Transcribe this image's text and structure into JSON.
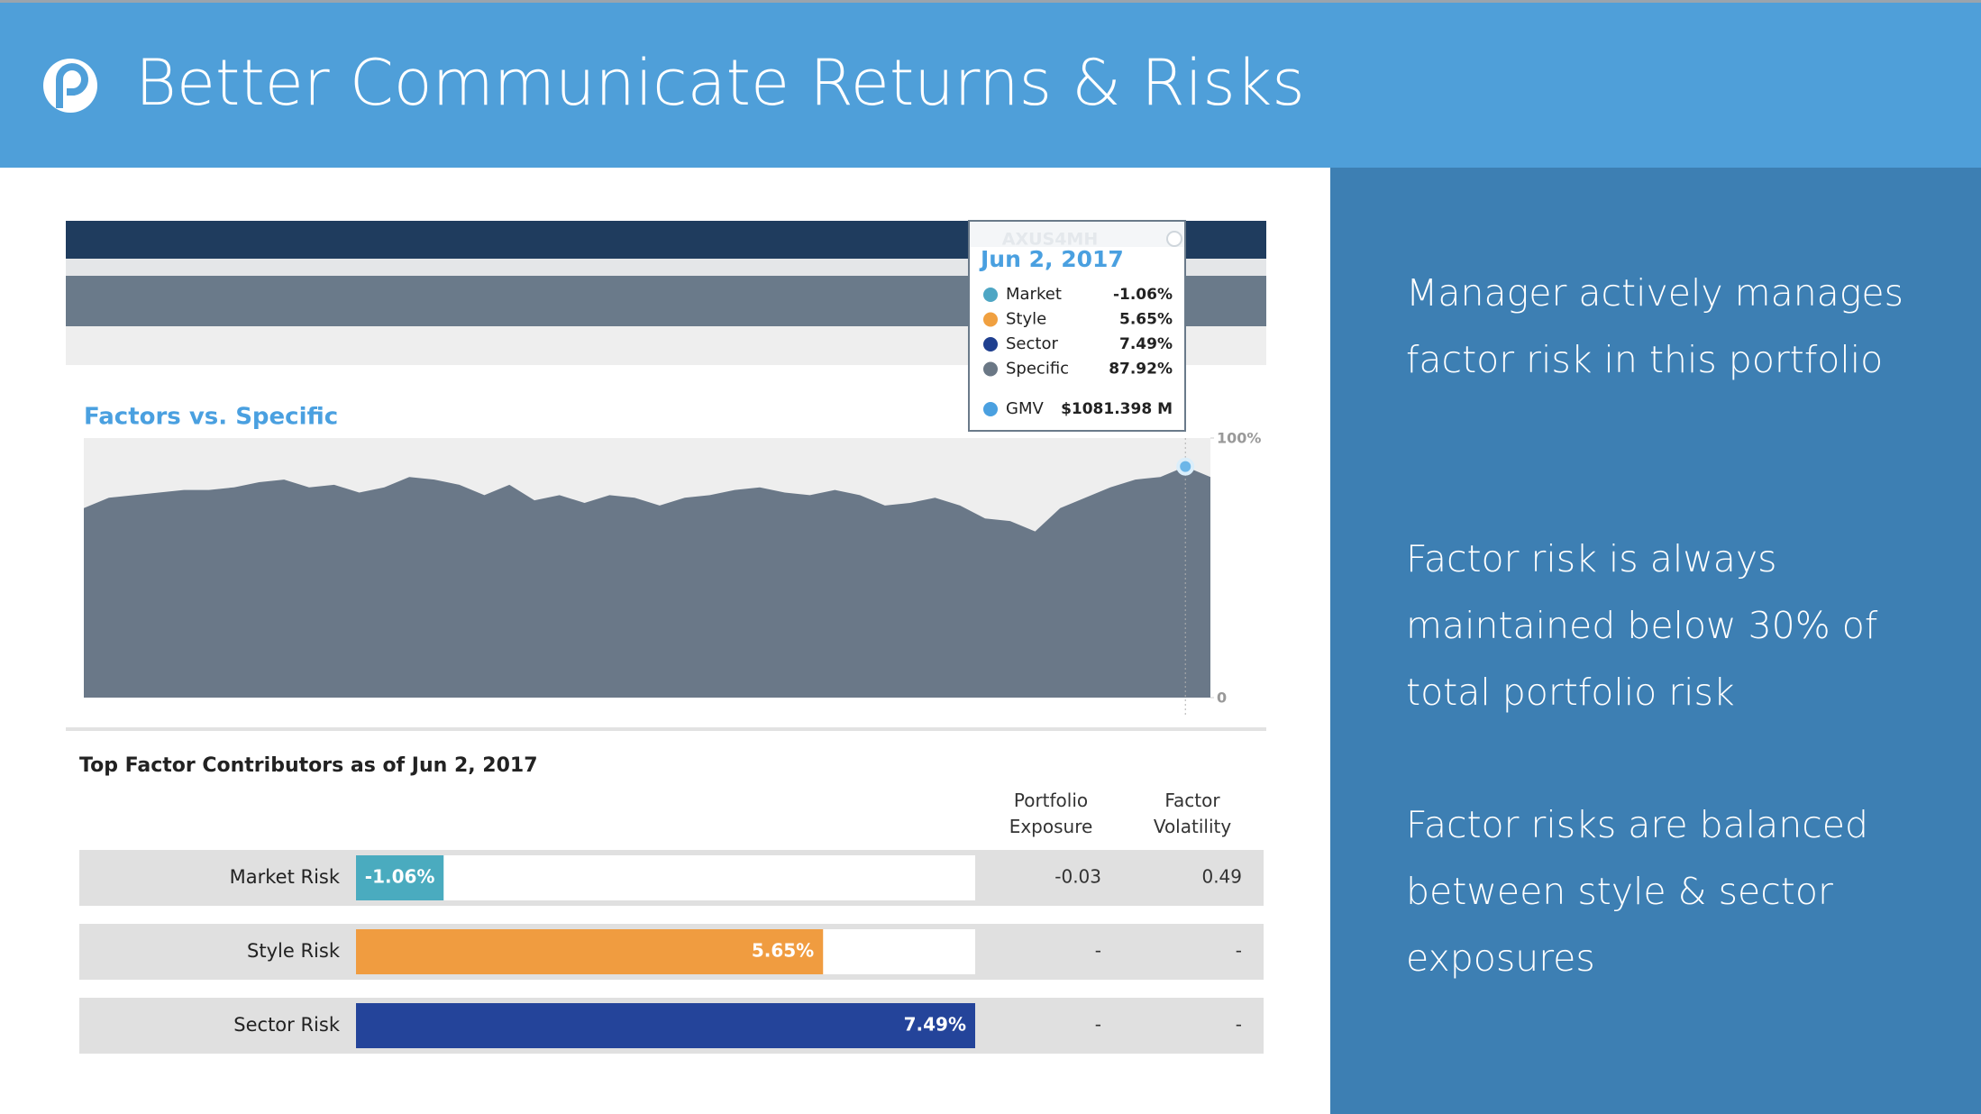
{
  "header": {
    "title": "Better Communicate Returns & Risks"
  },
  "tooltip": {
    "id": "AXUS4MH",
    "date": "Jun 2, 2017",
    "items": [
      {
        "name": "Market",
        "value": "-1.06%",
        "color": "#4ea6c4"
      },
      {
        "name": "Style",
        "value": "5.65%",
        "color": "#f0a040"
      },
      {
        "name": "Sector",
        "value": "7.49%",
        "color": "#1f3f8f"
      },
      {
        "name": "Specific",
        "value": "87.92%",
        "color": "#6a7785"
      }
    ],
    "gmv": {
      "name": "GMV",
      "value": "$1081.398 M",
      "color": "#4aa0e0"
    }
  },
  "chart_data": [
    {
      "type": "area",
      "title": "Factors vs. Specific",
      "color": "#6a7888",
      "values": [
        73,
        77,
        78,
        79,
        80,
        80,
        81,
        83,
        84,
        81,
        82,
        79,
        81,
        85,
        84,
        82,
        78,
        82,
        76,
        78,
        75,
        78,
        77,
        74,
        77,
        78,
        80,
        81,
        79,
        78,
        80,
        78,
        74,
        75,
        77,
        74,
        69,
        68,
        64,
        73,
        77,
        81,
        84,
        85,
        89,
        85
      ],
      "ylim": [
        0,
        100
      ],
      "yticks": [
        {
          "value": 0,
          "label": "0"
        },
        {
          "value": 100,
          "label": "100%"
        }
      ]
    },
    {
      "type": "hbar",
      "title": "Top Factor Contributors as of Jun 2, 2017",
      "categories": [
        "Market Risk",
        "Style Risk",
        "Sector Risk"
      ],
      "values": [
        -1.06,
        5.65,
        7.49
      ],
      "value_labels": [
        "-1.06%",
        "5.65%",
        "7.49%"
      ],
      "colors": [
        "#4aabbf",
        "#f09c40",
        "#24449a"
      ],
      "xlim": [
        0,
        7.49
      ],
      "columns": [
        "Portfolio Exposure",
        "Factor Volatility"
      ],
      "column_values": [
        [
          -0.03,
          0.49
        ],
        [
          "-",
          "-"
        ],
        [
          "-",
          "-"
        ]
      ]
    }
  ],
  "notes": [
    [
      "Manager actively manages",
      "factor risk in this portfolio"
    ],
    [
      "Factor risk is always",
      "maintained below 30% of",
      "total portfolio risk"
    ],
    [
      "Factor risks are balanced",
      "between style & sector",
      "exposures"
    ]
  ]
}
